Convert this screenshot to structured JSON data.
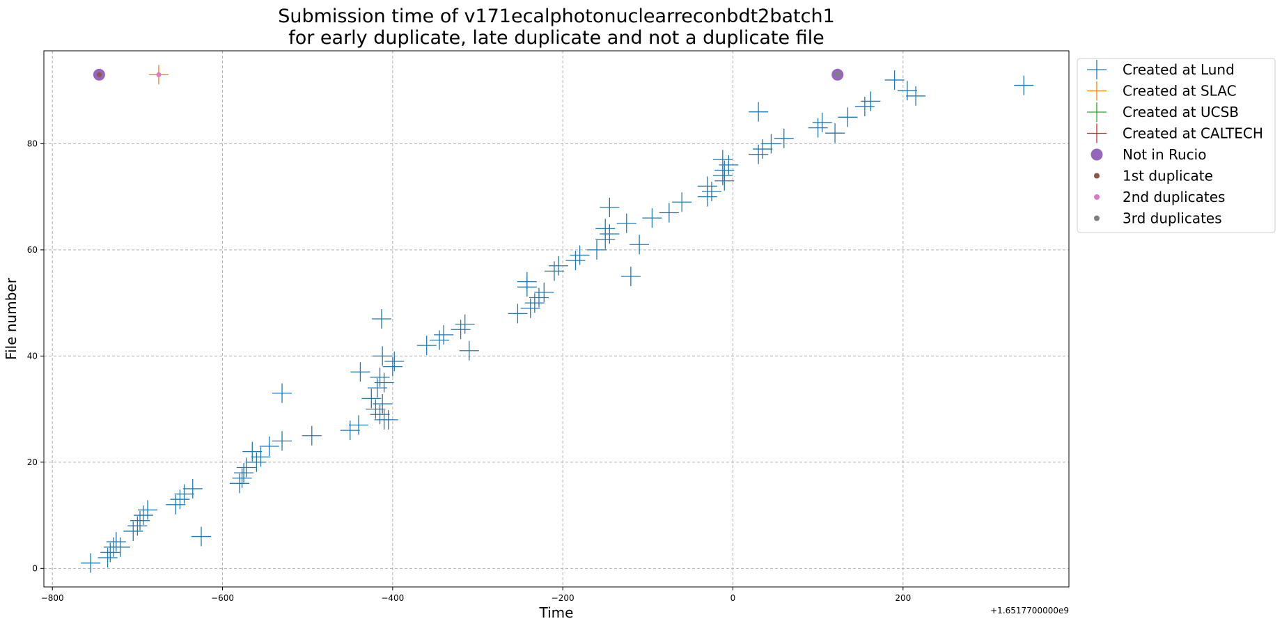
{
  "chart_data": {
    "type": "scatter",
    "title": [
      "Submission time of v171ecalphotonuclearreconbdt2batch1",
      "for early duplicate, late duplicate and not a duplicate file"
    ],
    "xlabel": "Time",
    "ylabel": "File number",
    "x_offset_label": "+1.6517700000e9",
    "xlim": [
      -810,
      395
    ],
    "ylim": [
      -3.5,
      97.5
    ],
    "xticks": [
      -800,
      -600,
      -400,
      -200,
      0,
      200
    ],
    "xtick_labels": [
      "−800",
      "−600",
      "−400",
      "−200",
      "0",
      "200"
    ],
    "yticks": [
      0,
      20,
      40,
      60,
      80
    ],
    "ytick_labels": [
      "0",
      "20",
      "40",
      "60",
      "80"
    ],
    "grid": true,
    "legend_position": "outside upper right",
    "legend": [
      {
        "label": "Created at Lund",
        "marker": "plus",
        "color": "#1f77b4"
      },
      {
        "label": "Created at SLAC",
        "marker": "plus",
        "color": "#ff7f0e"
      },
      {
        "label": "Created at UCSB",
        "marker": "plus",
        "color": "#2ca02c"
      },
      {
        "label": "Created at CALTECH",
        "marker": "plus",
        "color": "#d62728"
      },
      {
        "label": "Not in Rucio",
        "marker": "circle-large",
        "color": "#9467bd"
      },
      {
        "label": "1st duplicate",
        "marker": "circle-small",
        "color": "#8c564b"
      },
      {
        "label": "2nd duplicates",
        "marker": "circle-small",
        "color": "#e377c2"
      },
      {
        "label": "3rd duplicates",
        "marker": "circle-small",
        "color": "#7f7f7f"
      }
    ],
    "series": [
      {
        "name": "Created at Lund",
        "color": "#1f77b4",
        "marker": "plus",
        "points": [
          [
            -755,
            1
          ],
          [
            -735,
            2
          ],
          [
            -732,
            3
          ],
          [
            -728,
            4
          ],
          [
            -720,
            4
          ],
          [
            -725,
            5
          ],
          [
            -705,
            7
          ],
          [
            -700,
            8
          ],
          [
            -697,
            9
          ],
          [
            -693,
            10
          ],
          [
            -688,
            11
          ],
          [
            -655,
            12
          ],
          [
            -650,
            13
          ],
          [
            -645,
            14
          ],
          [
            -635,
            15
          ],
          [
            -625,
            6
          ],
          [
            -580,
            16
          ],
          [
            -577,
            17
          ],
          [
            -575,
            18
          ],
          [
            -572,
            19
          ],
          [
            -560,
            20
          ],
          [
            -555,
            21
          ],
          [
            -565,
            22
          ],
          [
            -545,
            23
          ],
          [
            -530,
            24
          ],
          [
            -530,
            33
          ],
          [
            -495,
            25
          ],
          [
            -450,
            26
          ],
          [
            -440,
            27
          ],
          [
            -410,
            28
          ],
          [
            -405,
            28
          ],
          [
            -415,
            29
          ],
          [
            -420,
            30
          ],
          [
            -412,
            31
          ],
          [
            -425,
            32
          ],
          [
            -418,
            34
          ],
          [
            -410,
            35
          ],
          [
            -415,
            36
          ],
          [
            -438,
            37
          ],
          [
            -400,
            38
          ],
          [
            -398,
            39
          ],
          [
            -412,
            40
          ],
          [
            -310,
            41
          ],
          [
            -360,
            42
          ],
          [
            -345,
            43
          ],
          [
            -340,
            44
          ],
          [
            -320,
            45
          ],
          [
            -315,
            46
          ],
          [
            -413,
            47
          ],
          [
            -253,
            48
          ],
          [
            -238,
            49
          ],
          [
            -233,
            50
          ],
          [
            -228,
            51
          ],
          [
            -222,
            52
          ],
          [
            -242,
            53
          ],
          [
            -242,
            54
          ],
          [
            -120,
            55
          ],
          [
            -210,
            56
          ],
          [
            -205,
            57
          ],
          [
            -185,
            58
          ],
          [
            -180,
            59
          ],
          [
            -160,
            60
          ],
          [
            -110,
            61
          ],
          [
            -150,
            62
          ],
          [
            -145,
            63
          ],
          [
            -150,
            64
          ],
          [
            -125,
            65
          ],
          [
            -95,
            66
          ],
          [
            -75,
            67
          ],
          [
            -145,
            68
          ],
          [
            -60,
            69
          ],
          [
            -30,
            70
          ],
          [
            -25,
            71
          ],
          [
            -30,
            72
          ],
          [
            -10,
            73
          ],
          [
            -12,
            74
          ],
          [
            -10,
            75
          ],
          [
            -5,
            76
          ],
          [
            -12,
            77
          ],
          [
            30,
            78
          ],
          [
            35,
            79
          ],
          [
            45,
            80
          ],
          [
            60,
            81
          ],
          [
            120,
            82
          ],
          [
            100,
            83
          ],
          [
            105,
            84
          ],
          [
            135,
            85
          ],
          [
            30,
            86
          ],
          [
            155,
            87
          ],
          [
            162,
            88
          ],
          [
            215,
            89
          ],
          [
            205,
            90
          ],
          [
            342,
            91
          ],
          [
            190,
            92
          ]
        ]
      },
      {
        "name": "Created at SLAC",
        "color": "#ff7f0e",
        "marker": "plus",
        "points": [
          [
            -675,
            93
          ]
        ]
      },
      {
        "name": "Created at UCSB",
        "color": "#2ca02c",
        "marker": "plus",
        "points": []
      },
      {
        "name": "Created at CALTECH",
        "color": "#d62728",
        "marker": "plus",
        "points": []
      },
      {
        "name": "Not in Rucio",
        "color": "#9467bd",
        "marker": "circle-large",
        "points": [
          [
            -745,
            93
          ],
          [
            123,
            93
          ]
        ]
      },
      {
        "name": "1st duplicate",
        "color": "#8c564b",
        "marker": "circle-small",
        "points": [
          [
            -745,
            93
          ]
        ]
      },
      {
        "name": "2nd duplicates",
        "color": "#e377c2",
        "marker": "circle-small",
        "points": [
          [
            -675,
            93
          ]
        ]
      },
      {
        "name": "3rd duplicates",
        "color": "#7f7f7f",
        "marker": "circle-small",
        "points": [
          [
            123,
            93
          ]
        ]
      }
    ]
  }
}
